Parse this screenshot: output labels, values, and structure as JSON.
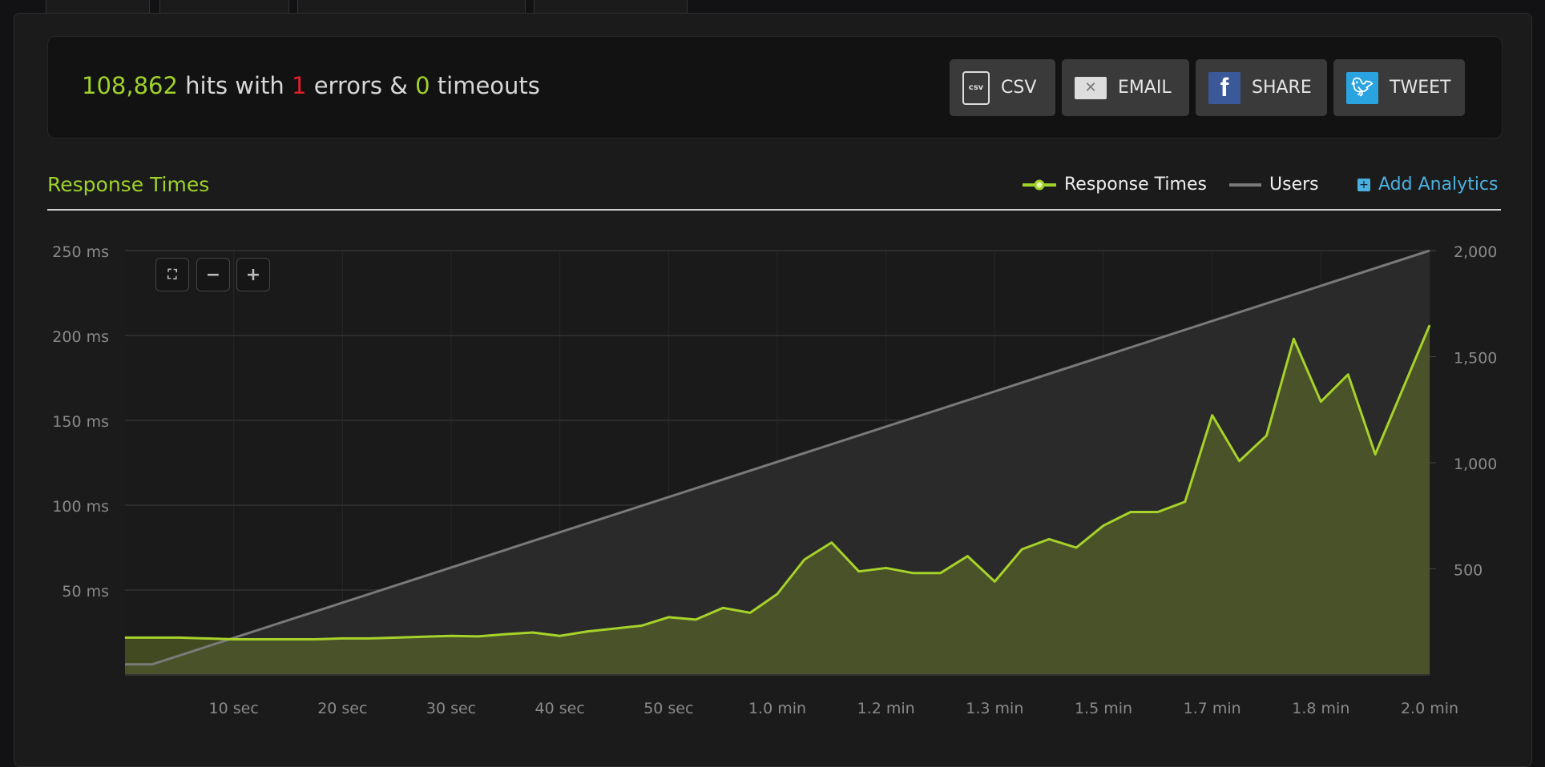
{
  "summary": {
    "hits": "108,862",
    "hits_text": " hits with ",
    "errors": "1",
    "errors_text": " errors & ",
    "timeouts": "0",
    "timeouts_text": " timeouts"
  },
  "actions": [
    {
      "label": "CSV",
      "icon": "csv-file-icon"
    },
    {
      "label": "EMAIL",
      "icon": "envelope-icon"
    },
    {
      "label": "SHARE",
      "icon": "facebook-icon"
    },
    {
      "label": "TWEET",
      "icon": "twitter-icon"
    }
  ],
  "section": {
    "title": "Response Times",
    "add_analytics": "Add Analytics"
  },
  "zoom_controls": [
    "fit",
    "zoom-out",
    "zoom-in"
  ],
  "colors": {
    "accent": "#9fd22a",
    "error": "#e0202a",
    "users_line": "#7a7a7a",
    "link": "#4ab0e0"
  },
  "chart_data": {
    "type": "area",
    "legend": [
      "Response Times",
      "Users"
    ],
    "legend_placement": "top-right",
    "grid": true,
    "x_unit": "seconds",
    "xlim": [
      0,
      120
    ],
    "x_ticks": [
      {
        "value": 10,
        "label": "10 sec"
      },
      {
        "value": 20,
        "label": "20 sec"
      },
      {
        "value": 30,
        "label": "30 sec"
      },
      {
        "value": 40,
        "label": "40 sec"
      },
      {
        "value": 50,
        "label": "50 sec"
      },
      {
        "value": 60,
        "label": "1.0 min"
      },
      {
        "value": 70,
        "label": "1.2 min"
      },
      {
        "value": 80,
        "label": "1.3 min"
      },
      {
        "value": 90,
        "label": "1.5 min"
      },
      {
        "value": 100,
        "label": "1.7 min"
      },
      {
        "value": 110,
        "label": "1.8 min"
      },
      {
        "value": 120,
        "label": "2.0 min"
      }
    ],
    "y_left": {
      "ylim": [
        0,
        250
      ],
      "ticks": [
        {
          "value": 50,
          "label": "50 ms"
        },
        {
          "value": 100,
          "label": "100 ms"
        },
        {
          "value": 150,
          "label": "150 ms"
        },
        {
          "value": 200,
          "label": "200 ms"
        },
        {
          "value": 250,
          "label": "250 ms"
        }
      ]
    },
    "y_right": {
      "ylim": [
        0,
        2000
      ],
      "ticks": [
        {
          "value": 500,
          "label": "500"
        },
        {
          "value": 1000,
          "label": "1,000"
        },
        {
          "value": 1500,
          "label": "1,500"
        },
        {
          "value": 2000,
          "label": "2,000"
        }
      ]
    },
    "series": [
      {
        "name": "Response Times",
        "axis": "left",
        "points": [
          [
            0,
            22
          ],
          [
            2.5,
            22
          ],
          [
            5,
            22
          ],
          [
            7.5,
            21.5
          ],
          [
            10,
            21
          ],
          [
            12.5,
            21
          ],
          [
            15,
            21
          ],
          [
            17.5,
            21
          ],
          [
            20,
            21.5
          ],
          [
            22.5,
            21.5
          ],
          [
            25,
            22
          ],
          [
            27.5,
            22.5
          ],
          [
            30,
            23
          ],
          [
            32.5,
            22.7
          ],
          [
            35,
            24
          ],
          [
            37.5,
            25
          ],
          [
            40,
            23
          ],
          [
            42.5,
            25.6
          ],
          [
            45,
            27.3
          ],
          [
            47.5,
            29
          ],
          [
            50,
            34
          ],
          [
            52.5,
            32.6
          ],
          [
            55,
            39.5
          ],
          [
            57.5,
            36.6
          ],
          [
            60,
            47.7
          ],
          [
            62.5,
            68
          ],
          [
            65,
            78
          ],
          [
            67.5,
            61
          ],
          [
            70,
            63
          ],
          [
            72.5,
            60
          ],
          [
            75,
            60
          ],
          [
            77.5,
            70
          ],
          [
            80,
            55
          ],
          [
            82.5,
            74
          ],
          [
            85,
            80
          ],
          [
            87.5,
            75
          ],
          [
            90,
            88
          ],
          [
            92.5,
            96
          ],
          [
            95,
            96
          ],
          [
            97.5,
            102
          ],
          [
            100,
            153
          ],
          [
            102.5,
            126
          ],
          [
            105,
            141
          ],
          [
            107.5,
            198
          ],
          [
            110,
            161
          ],
          [
            112.5,
            177
          ],
          [
            115,
            130
          ],
          [
            120,
            206
          ]
        ]
      },
      {
        "name": "Users",
        "axis": "right",
        "points": [
          [
            0,
            50
          ],
          [
            2.5,
            50
          ],
          [
            120,
            2000
          ]
        ]
      }
    ]
  }
}
